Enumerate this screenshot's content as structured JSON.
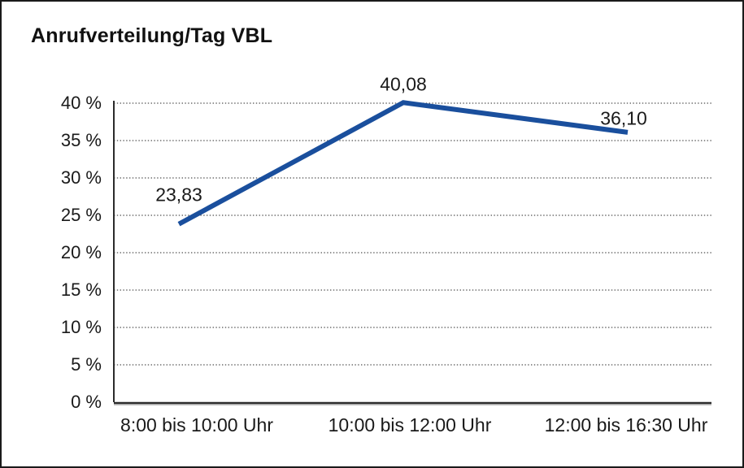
{
  "window": {
    "background_color": "#ffffff",
    "frame_color": "#1a1a1a"
  },
  "chart_data": {
    "type": "line",
    "title": "Anrufverteilung/Tag VBL",
    "categories": [
      "8:00 bis 10:00 Uhr",
      "10:00 bis 12:00 Uhr",
      "12:00 bis 16:30 Uhr"
    ],
    "values": [
      23.83,
      40.08,
      36.1
    ],
    "value_labels": [
      "23,83",
      "40,08",
      "36,10"
    ],
    "xlabel": "",
    "ylabel": "",
    "ylim": [
      0,
      40
    ],
    "ytick_step": 5,
    "ytick_labels": [
      "0 %",
      "5 %",
      "10 %",
      "15 %",
      "20 %",
      "25 %",
      "30 %",
      "35 %",
      "40 %"
    ],
    "grid": "horizontal-dotted",
    "legend": "none",
    "line_color": "#1a4f9d",
    "grid_color": "#4d4d4d",
    "axis_color": "#2b2b2b",
    "text_color": "#1a1a1a"
  }
}
